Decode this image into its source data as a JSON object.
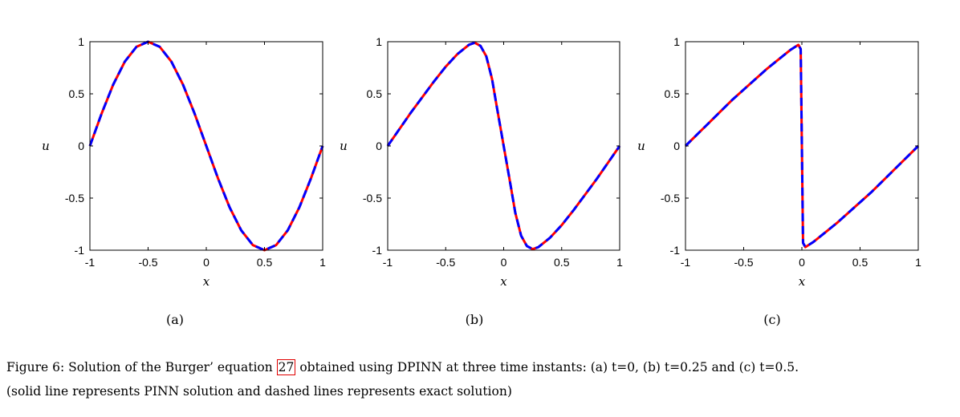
{
  "chart_data": [
    {
      "type": "line",
      "panel_label": "(a)",
      "xlabel": "x",
      "ylabel": "u",
      "xlim": [
        -1,
        1
      ],
      "ylim": [
        -1,
        1
      ],
      "xticks": [
        "-1",
        "-0.5",
        "0",
        "0.5",
        "1"
      ],
      "yticks": [
        "1",
        "0.5",
        "0",
        "-0.5",
        "-1"
      ],
      "grid": false,
      "series": [
        {
          "style": "solid",
          "color": "#ff0000",
          "x": [
            -1,
            -0.9,
            -0.8,
            -0.7,
            -0.6,
            -0.5,
            -0.4,
            -0.3,
            -0.2,
            -0.1,
            0,
            0.1,
            0.2,
            0.3,
            0.4,
            0.5,
            0.6,
            0.7,
            0.8,
            0.9,
            1
          ],
          "y": [
            0,
            0.309,
            0.588,
            0.809,
            0.951,
            1,
            0.951,
            0.809,
            0.588,
            0.309,
            0,
            -0.309,
            -0.588,
            -0.809,
            -0.951,
            -1,
            -0.951,
            -0.809,
            -0.588,
            -0.309,
            0
          ]
        },
        {
          "style": "dashed",
          "color": "#0000ff",
          "x": [
            -1,
            -0.9,
            -0.8,
            -0.7,
            -0.6,
            -0.5,
            -0.4,
            -0.3,
            -0.2,
            -0.1,
            0,
            0.1,
            0.2,
            0.3,
            0.4,
            0.5,
            0.6,
            0.7,
            0.8,
            0.9,
            1
          ],
          "y": [
            0,
            0.309,
            0.588,
            0.809,
            0.951,
            1,
            0.951,
            0.809,
            0.588,
            0.309,
            0,
            -0.309,
            -0.588,
            -0.809,
            -0.951,
            -1,
            -0.951,
            -0.809,
            -0.588,
            -0.309,
            0
          ]
        }
      ]
    },
    {
      "type": "line",
      "panel_label": "(b)",
      "xlabel": "x",
      "ylabel": "u",
      "xlim": [
        -1,
        1
      ],
      "ylim": [
        -1,
        1
      ],
      "xticks": [
        "-1",
        "-0.5",
        "0",
        "0.5",
        "1"
      ],
      "yticks": [
        "1",
        "0.5",
        "0",
        "-0.5",
        "-1"
      ],
      "grid": false,
      "series": [
        {
          "style": "solid",
          "color": "#ff0000",
          "x": [
            -1,
            -0.9,
            -0.8,
            -0.7,
            -0.6,
            -0.5,
            -0.4,
            -0.3,
            -0.25,
            -0.2,
            -0.15,
            -0.1,
            -0.06,
            -0.03,
            0,
            0.03,
            0.06,
            0.1,
            0.15,
            0.2,
            0.25,
            0.3,
            0.4,
            0.5,
            0.6,
            0.7,
            0.8,
            0.9,
            1
          ],
          "y": [
            0,
            0.16,
            0.32,
            0.47,
            0.62,
            0.76,
            0.88,
            0.97,
            0.99,
            0.96,
            0.86,
            0.64,
            0.38,
            0.19,
            0,
            -0.19,
            -0.38,
            -0.64,
            -0.86,
            -0.96,
            -0.99,
            -0.97,
            -0.88,
            -0.76,
            -0.62,
            -0.47,
            -0.32,
            -0.16,
            0
          ]
        },
        {
          "style": "dashed",
          "color": "#0000ff",
          "x": [
            -1,
            -0.9,
            -0.8,
            -0.7,
            -0.6,
            -0.5,
            -0.4,
            -0.3,
            -0.25,
            -0.2,
            -0.15,
            -0.1,
            -0.06,
            -0.03,
            0,
            0.03,
            0.06,
            0.1,
            0.15,
            0.2,
            0.25,
            0.3,
            0.4,
            0.5,
            0.6,
            0.7,
            0.8,
            0.9,
            1
          ],
          "y": [
            0,
            0.16,
            0.32,
            0.47,
            0.62,
            0.76,
            0.88,
            0.97,
            0.99,
            0.96,
            0.86,
            0.64,
            0.38,
            0.19,
            0,
            -0.19,
            -0.38,
            -0.64,
            -0.86,
            -0.96,
            -0.99,
            -0.97,
            -0.88,
            -0.76,
            -0.62,
            -0.47,
            -0.32,
            -0.16,
            0
          ]
        }
      ]
    },
    {
      "type": "line",
      "panel_label": "(c)",
      "xlabel": "x",
      "ylabel": "u",
      "xlim": [
        -1,
        1
      ],
      "ylim": [
        -1,
        1
      ],
      "xticks": [
        "-1",
        "-0.5",
        "0",
        "0.5",
        "1"
      ],
      "yticks": [
        "1",
        "0.5",
        "0",
        "-0.5",
        "-1"
      ],
      "grid": false,
      "series": [
        {
          "style": "solid",
          "color": "#ff0000",
          "x": [
            -1,
            -0.9,
            -0.8,
            -0.7,
            -0.6,
            -0.5,
            -0.4,
            -0.3,
            -0.2,
            -0.1,
            -0.03,
            -0.01,
            0,
            0.01,
            0.03,
            0.1,
            0.2,
            0.3,
            0.4,
            0.5,
            0.6,
            0.7,
            0.8,
            0.9,
            1
          ],
          "y": [
            0,
            0.11,
            0.22,
            0.33,
            0.44,
            0.54,
            0.64,
            0.74,
            0.83,
            0.92,
            0.97,
            0.93,
            0,
            -0.93,
            -0.97,
            -0.92,
            -0.83,
            -0.74,
            -0.64,
            -0.54,
            -0.44,
            -0.33,
            -0.22,
            -0.11,
            0
          ]
        },
        {
          "style": "dashed",
          "color": "#0000ff",
          "x": [
            -1,
            -0.9,
            -0.8,
            -0.7,
            -0.6,
            -0.5,
            -0.4,
            -0.3,
            -0.2,
            -0.1,
            -0.03,
            -0.01,
            0,
            0.01,
            0.03,
            0.1,
            0.2,
            0.3,
            0.4,
            0.5,
            0.6,
            0.7,
            0.8,
            0.9,
            1
          ],
          "y": [
            0,
            0.11,
            0.22,
            0.33,
            0.44,
            0.54,
            0.64,
            0.74,
            0.83,
            0.92,
            0.97,
            0.93,
            0,
            -0.93,
            -0.97,
            -0.92,
            -0.83,
            -0.74,
            -0.64,
            -0.54,
            -0.44,
            -0.33,
            -0.22,
            -0.11,
            0
          ]
        }
      ]
    }
  ],
  "caption": {
    "prefix": "Figure 6: Solution of the Burger’ equation ",
    "ref": "27",
    "rest": " obtained using DPINN at three time instants: (a) t=0, (b) t=0.25 and (c) t=0.5.",
    "line2": "(solid line represents PINN solution and dashed lines represents exact solution)"
  }
}
